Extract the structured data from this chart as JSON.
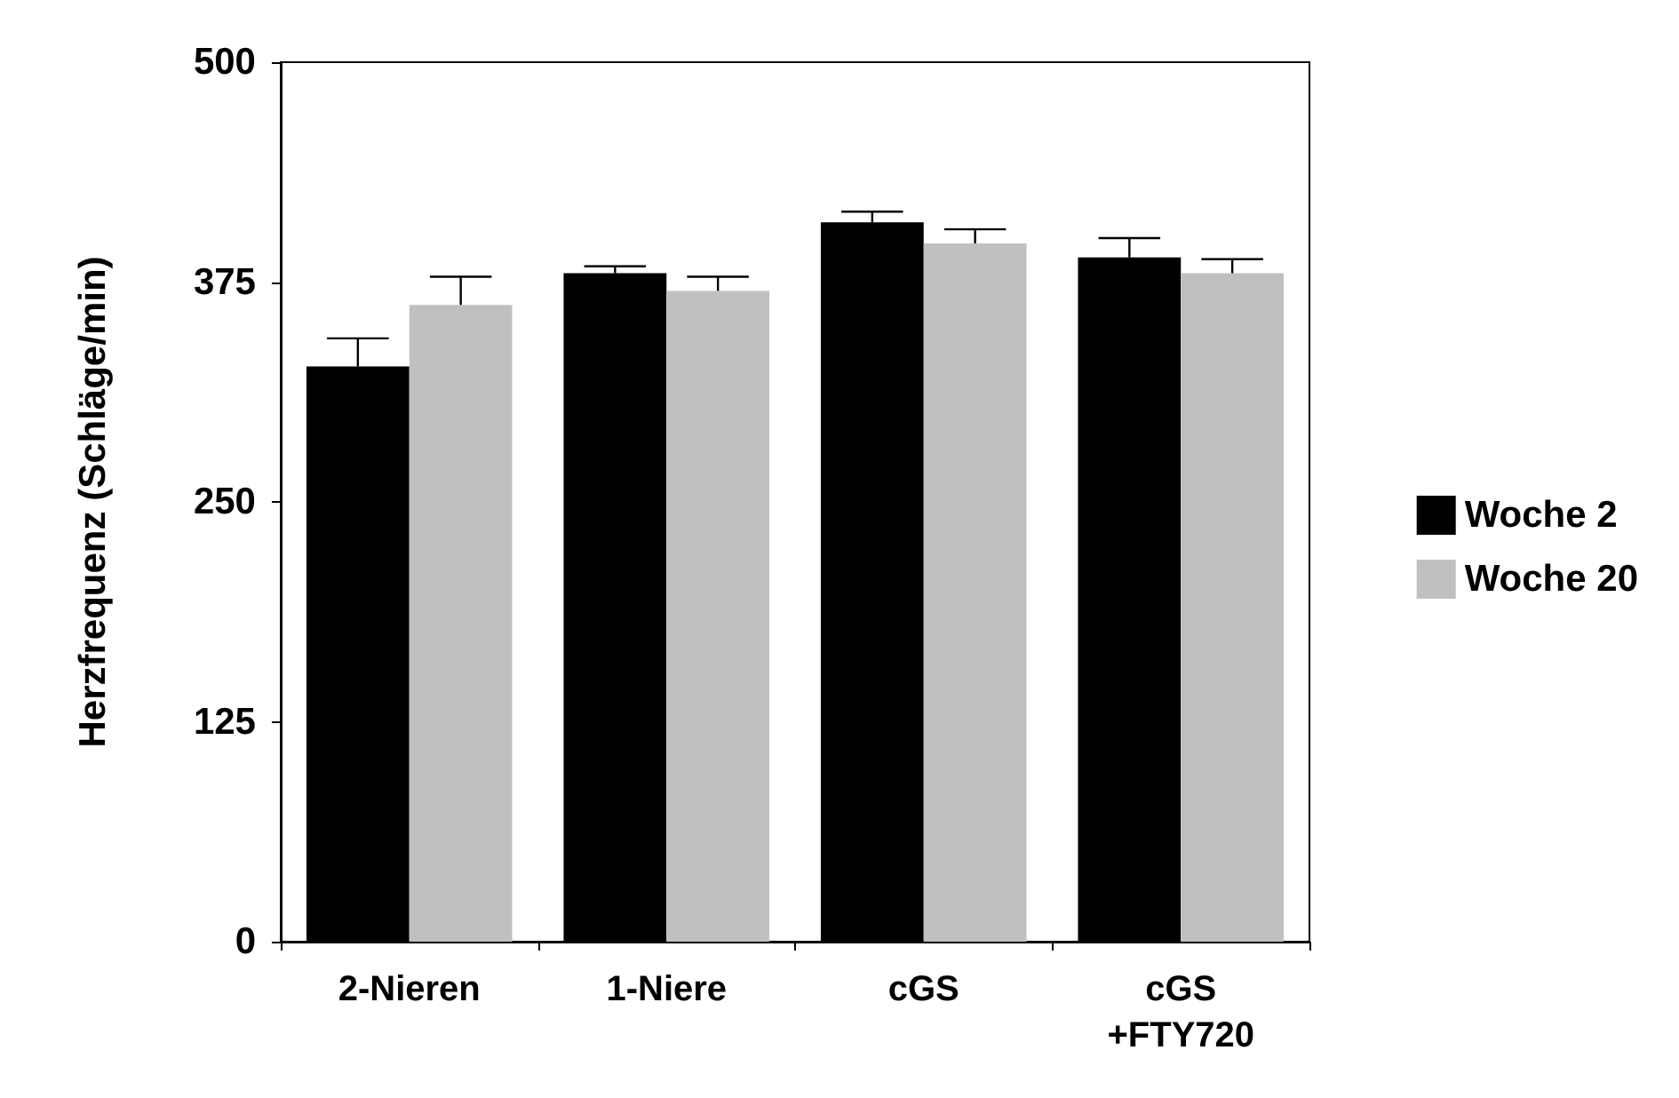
{
  "chart_data": {
    "type": "bar",
    "ylabel": "Herzfrequenz (Schläge/min)",
    "categories": [
      "2-Nieren",
      "1-Niere",
      "cGS",
      "cGS\n+FTY720"
    ],
    "series": [
      {
        "name": "Woche 2",
        "color": "#000000",
        "values": [
          327,
          380,
          409,
          389
        ],
        "errors": [
          [
            327,
            343
          ],
          [
            380,
            384
          ],
          [
            409,
            415
          ],
          [
            389,
            400
          ]
        ]
      },
      {
        "name": "Woche 20",
        "color": "#c0c0c0",
        "values": [
          362,
          370,
          397,
          380
        ],
        "errors": [
          [
            362,
            378
          ],
          [
            370,
            378
          ],
          [
            397,
            405
          ],
          [
            380,
            388
          ]
        ]
      }
    ],
    "ylim": [
      0,
      500
    ],
    "yticks": [
      0,
      125,
      250,
      375,
      500
    ],
    "grid": false,
    "legend": "right"
  }
}
